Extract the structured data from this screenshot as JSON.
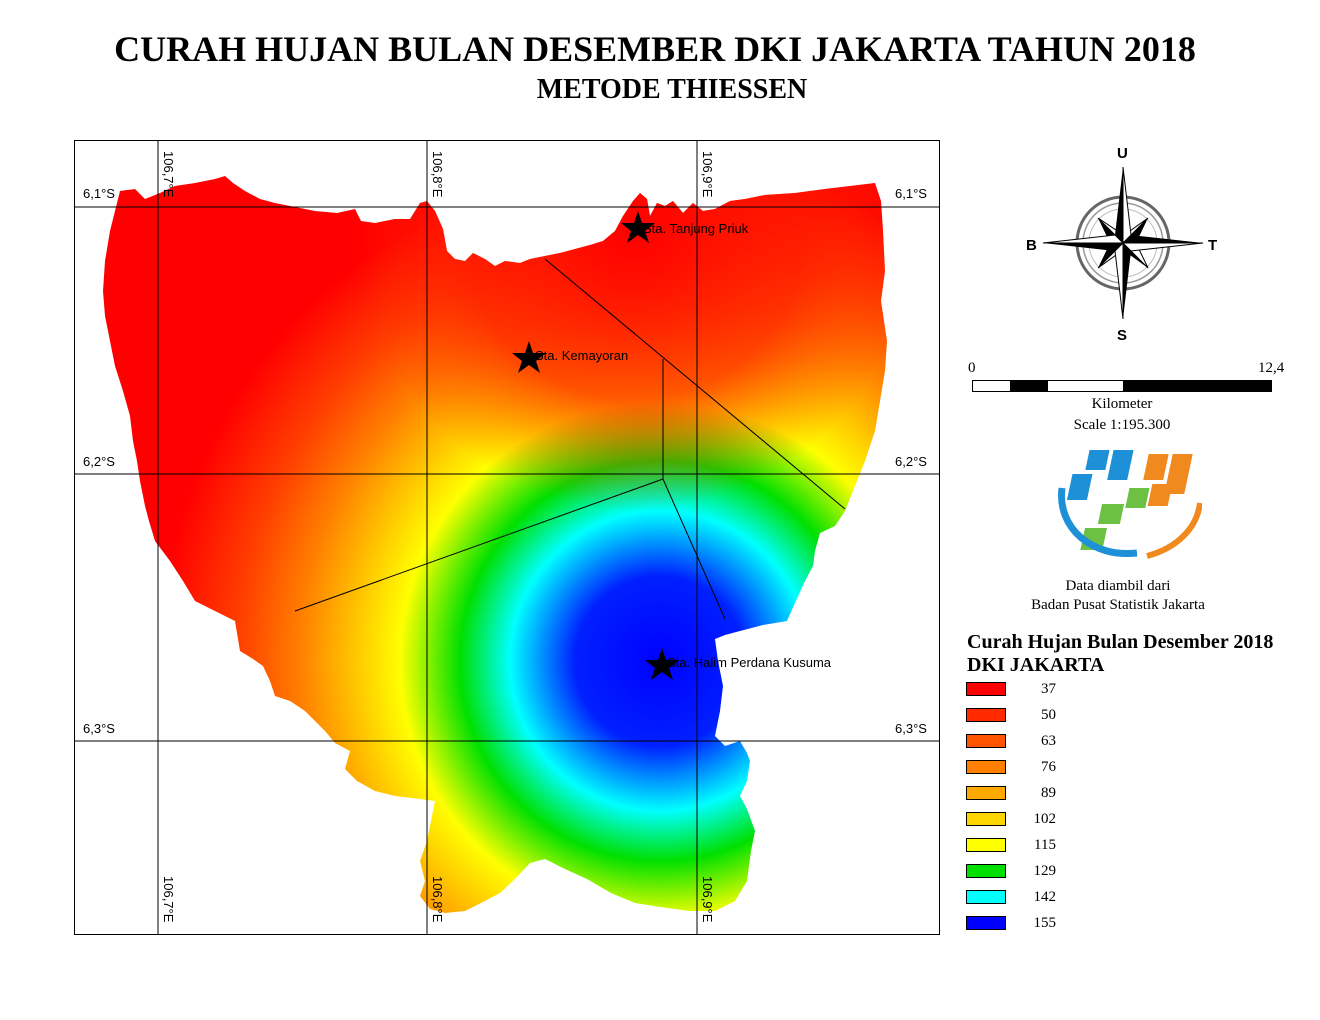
{
  "title": "CURAH HUJAN BULAN DESEMBER DKI JAKARTA TAHUN 2018",
  "subtitle": "METODE THIESSEN",
  "map": {
    "grid_labels_lat": [
      "6,1°S",
      "6,2°S",
      "6,3°S"
    ],
    "grid_labels_lon": [
      "106,7°E",
      "106,8°E",
      "106,9°E"
    ],
    "stations": [
      {
        "name": "Sta. Tanjung Priuk",
        "label": "Sta. Tanjung Priuk"
      },
      {
        "name": "Sta. Kemayoran",
        "label": "Sta. Kemayoran"
      },
      {
        "name": "Sta. Halim Perdana Kusuma",
        "label": "Sta. Halim Perdana Kusuma"
      }
    ]
  },
  "compass": {
    "north": "U",
    "south": "S",
    "west": "B",
    "east": "T"
  },
  "scale": {
    "min": "0",
    "max": "12,4",
    "unit": "Kilometer",
    "ratio": "Scale 1:195.300"
  },
  "source": {
    "line1": "Data diambil dari",
    "line2": "Badan Pusat Statistik Jakarta"
  },
  "legend": {
    "title_line1": "Curah Hujan Bulan Desember 2018",
    "title_line2": "DKI JAKARTA",
    "items": [
      {
        "value": "37",
        "color": "#ff0000"
      },
      {
        "value": "50",
        "color": "#ff2a00"
      },
      {
        "value": "63",
        "color": "#ff5500"
      },
      {
        "value": "76",
        "color": "#ff8000"
      },
      {
        "value": "89",
        "color": "#ffaa00"
      },
      {
        "value": "102",
        "color": "#ffd500"
      },
      {
        "value": "115",
        "color": "#ffff00"
      },
      {
        "value": "129",
        "color": "#00e000"
      },
      {
        "value": "142",
        "color": "#00ffff"
      },
      {
        "value": "155",
        "color": "#0000ff"
      }
    ]
  }
}
